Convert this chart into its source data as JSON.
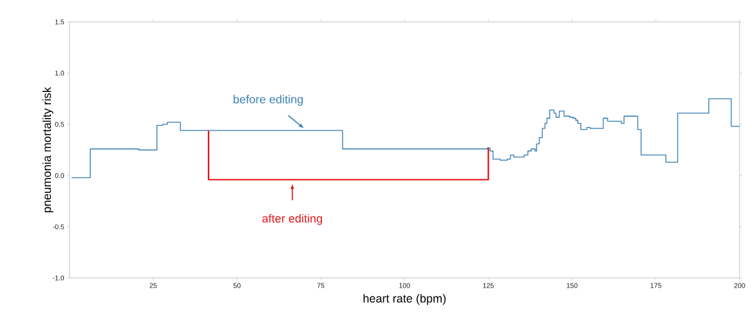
{
  "chart_data": {
    "type": "step",
    "xlabel": "heart rate (bpm)",
    "ylabel": "pneumonia mortality risk",
    "xlim": [
      0,
      200
    ],
    "ylim": [
      -1.0,
      1.5
    ],
    "xticks": [
      25,
      50,
      75,
      100,
      125,
      150,
      175,
      200
    ],
    "yticks": [
      {
        "value": -1.0,
        "label": "-1.0"
      },
      {
        "value": -0.5,
        "label": "-0.5"
      },
      {
        "value": 0.0,
        "label": "0.0"
      },
      {
        "value": 0.5,
        "label": "0.5"
      },
      {
        "value": 1.0,
        "label": "1.0"
      },
      {
        "value": 1.5,
        "label": "1.5"
      }
    ],
    "grid": false,
    "series": [
      {
        "color": "#3a7fb4",
        "x": [
          0.6,
          6.2,
          20.7,
          26.1,
          27.9,
          29.2,
          33.1,
          81.5,
          124.7,
          125.5,
          126.4,
          128.5,
          130.6,
          131.6,
          132.6,
          135.7,
          136.8,
          137.8,
          139.0,
          139.4,
          140.2,
          141.1,
          141.9,
          142.5,
          143.3,
          144.6,
          145.2,
          146.2,
          147.6,
          149.3,
          150.3,
          151.1,
          151.7,
          152.6,
          154.4,
          155.4,
          159.3,
          160.6,
          164.7,
          165.5,
          169.6,
          170.6,
          178.0,
          181.5,
          190.8,
          197.5,
          200
        ],
        "values": [
          -0.02,
          0.26,
          0.25,
          0.49,
          0.5,
          0.52,
          0.44,
          0.26,
          0.27,
          0.24,
          0.16,
          0.15,
          0.16,
          0.2,
          0.18,
          0.2,
          0.24,
          0.26,
          0.24,
          0.31,
          0.37,
          0.46,
          0.51,
          0.56,
          0.64,
          0.61,
          0.57,
          0.63,
          0.58,
          0.57,
          0.56,
          0.54,
          0.51,
          0.45,
          0.47,
          0.46,
          0.56,
          0.53,
          0.51,
          0.58,
          0.45,
          0.2,
          0.13,
          0.61,
          0.75,
          0.48,
          0.48
        ]
      },
      {
        "type": "line",
        "color": "#e3191c",
        "x": [
          41.5,
          41.5,
          125,
          125
        ],
        "values": [
          0.44,
          -0.04,
          -0.04,
          0.27
        ]
      }
    ],
    "annotations": [
      {
        "text": "before editing",
        "x": 70.6,
        "y": 0.44
      },
      {
        "text": "after editing",
        "x": 66.5,
        "y": -0.04
      }
    ]
  }
}
